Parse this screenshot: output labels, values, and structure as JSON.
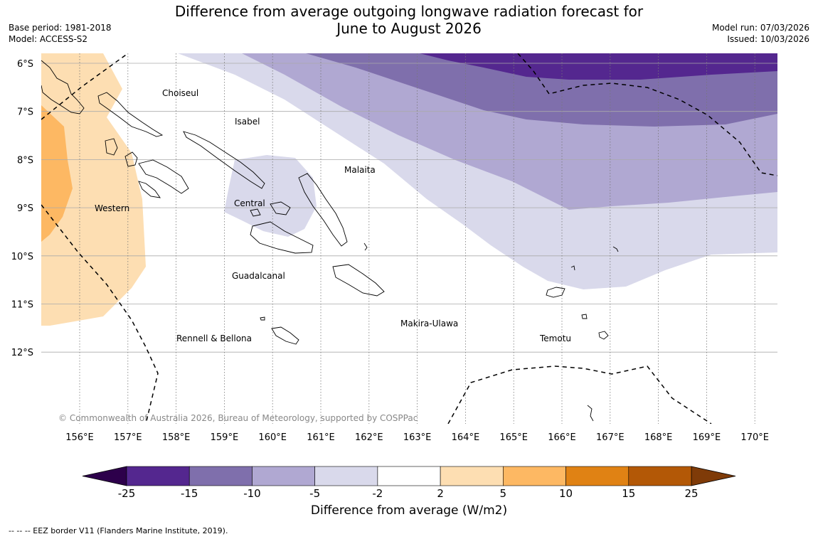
{
  "title_line1": "Difference from average outgoing longwave radiation forecast for",
  "title_line2": "June to August 2026",
  "base_period": "Base period: 1981-2018",
  "model": "Model: ACCESS-S2",
  "model_run": "Model run: 07/03/2026",
  "issued": "Issued: 10/03/2026",
  "copyright": "© Commonwealth of Australia 2026, Bureau of Meteorology, supported by COSPPac",
  "lon_labels": [
    "156°E",
    "157°E",
    "158°E",
    "159°E",
    "160°E",
    "161°E",
    "162°E",
    "163°E",
    "164°E",
    "165°E",
    "166°E",
    "167°E",
    "168°E",
    "169°E",
    "170°E"
  ],
  "lat_labels": [
    "6°S",
    "7°S",
    "8°S",
    "9°S",
    "10°S",
    "11°S",
    "12°S"
  ],
  "provinces": [
    "Choiseul",
    "Isabel",
    "Malaita",
    "Central",
    "Western",
    "Guadalcanal",
    "Makira-Ulawa",
    "Rennell & Bellona",
    "Temotu"
  ],
  "colorbar": {
    "ticks": [
      "-25",
      "-15",
      "-10",
      "-5",
      "-2",
      "2",
      "5",
      "10",
      "15",
      "25"
    ],
    "colors": [
      "#54278f",
      "#7f6fac",
      "#b0a8d2",
      "#d9d9eb",
      "#ffffff",
      "#fddeb2",
      "#fdb863",
      "#e08214",
      "#b35806"
    ],
    "under_color": "#2d004b",
    "over_color": "#7f3b08",
    "label": "Difference from average (W/m2)"
  },
  "footnote": "--  --  -- EEZ border V11 (Flanders Marine Institute, 2019)."
}
